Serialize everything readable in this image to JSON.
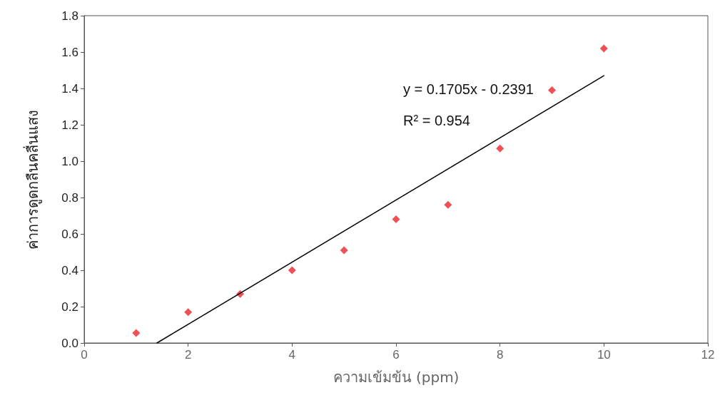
{
  "chart_data": {
    "type": "scatter",
    "xlabel": "ความเข้มข้น (ppm)",
    "ylabel": "ค่าการดูดกลืนคลื่นแสง",
    "annotations": [
      "y = 0.1705x - 0.2391",
      "R² = 0.954"
    ],
    "marker": "diamond",
    "xlim": [
      0,
      12
    ],
    "xticks": [
      0,
      2,
      4,
      6,
      8,
      10,
      12
    ],
    "ylim": [
      0,
      1.8
    ],
    "yticks": [
      {
        "value": 0,
        "label": "0.0"
      },
      0.2,
      0.4,
      0.6,
      0.8,
      {
        "value": 1,
        "label": "1.0"
      },
      1.2,
      1.4,
      1.6,
      1.8
    ],
    "series": [
      {
        "color": "#e8262a",
        "x": [
          1,
          2,
          3,
          4,
          5,
          6,
          7,
          8,
          9,
          10
        ],
        "values": [
          0.055,
          0.17,
          0.27,
          0.4,
          0.51,
          0.68,
          0.76,
          1.07,
          1.39,
          1.62
        ]
      },
      {
        "type": "line",
        "color": "#000000",
        "marker": "none",
        "line_style": "solid",
        "x": [
          1.4,
          10
        ],
        "values": [
          0,
          1.47
        ]
      }
    ]
  }
}
